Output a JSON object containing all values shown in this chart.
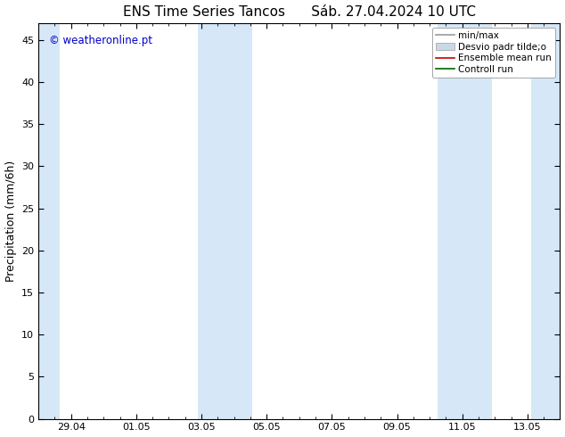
{
  "title_left": "ENS Time Series Tancos",
  "title_right": "Sáb. 27.04.2024 10 UTC",
  "ylabel": "Precipitation (mm/6h)",
  "watermark": "© weatheronline.pt",
  "watermark_color": "#0000cc",
  "ylim": [
    0,
    47
  ],
  "yticks": [
    0,
    5,
    10,
    15,
    20,
    25,
    30,
    35,
    40,
    45
  ],
  "xtick_labels": [
    "29.04",
    "01.05",
    "03.05",
    "05.05",
    "07.05",
    "09.05",
    "11.05",
    "13.05"
  ],
  "xtick_positions": [
    1,
    3,
    5,
    7,
    9,
    11,
    13,
    15
  ],
  "xlim": [
    0,
    16
  ],
  "shade_regions": [
    [
      0.0,
      0.65
    ],
    [
      4.9,
      6.55
    ],
    [
      12.25,
      13.9
    ],
    [
      15.1,
      16.0
    ]
  ],
  "shade_color": "#d6e8f7",
  "legend_labels": [
    "min/max",
    "Desvio padr tilde;o",
    "Ensemble mean run",
    "Controll run"
  ],
  "legend_line_color": "#999999",
  "legend_box_color": "#c8d8e8",
  "legend_box_edge": "#aaaaaa",
  "legend_red": "#cc0000",
  "legend_green": "#006600",
  "background_color": "#ffffff",
  "plot_bg_color": "#ffffff",
  "title_fontsize": 11,
  "axis_fontsize": 9,
  "tick_fontsize": 8,
  "legend_fontsize": 7.5
}
